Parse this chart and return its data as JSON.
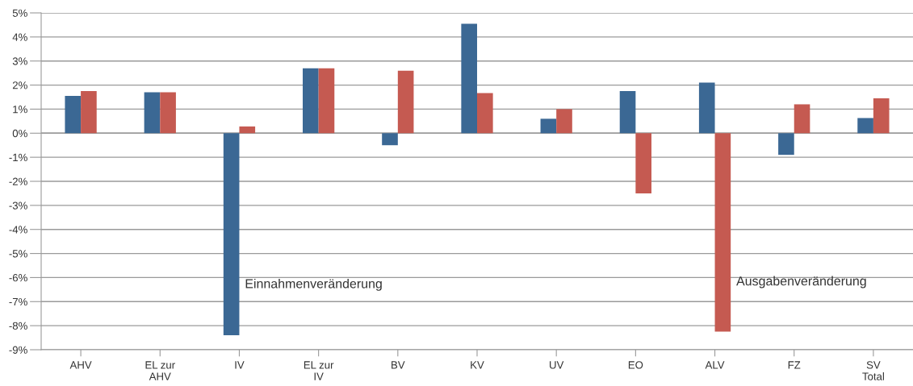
{
  "chart_data": {
    "type": "bar",
    "categories": [
      "AHV",
      "EL zur\nAHV",
      "IV",
      "EL zur\nIV",
      "BV",
      "KV",
      "UV",
      "EO",
      "ALV",
      "FZ",
      "SV\nTotal"
    ],
    "series": [
      {
        "name": "Einnahmenveränderung",
        "color": "#3b6894",
        "values": [
          1.55,
          1.7,
          -8.4,
          2.7,
          -0.5,
          4.55,
          0.6,
          1.75,
          2.1,
          -0.9,
          0.63
        ]
      },
      {
        "name": "Ausgabenveränderung",
        "color": "#c55a51",
        "values": [
          1.75,
          1.7,
          0.28,
          2.7,
          2.6,
          1.67,
          1.0,
          -2.5,
          -8.25,
          1.2,
          1.45
        ]
      }
    ],
    "ylim": [
      -9,
      5
    ],
    "yticks": [
      {
        "value": -9,
        "label": "-9%"
      },
      {
        "value": -8,
        "label": "-8%"
      },
      {
        "value": -7,
        "label": "-7%"
      },
      {
        "value": -6,
        "label": "-6%"
      },
      {
        "value": -5,
        "label": "-5%"
      },
      {
        "value": -4,
        "label": "-4%"
      },
      {
        "value": -3,
        "label": "-3%"
      },
      {
        "value": -2,
        "label": "-2%"
      },
      {
        "value": -1,
        "label": "-1%"
      },
      {
        "value": 0,
        "label": "0%"
      },
      {
        "value": 1,
        "label": "1%"
      },
      {
        "value": 2,
        "label": "2%"
      },
      {
        "value": 3,
        "label": "3%"
      },
      {
        "value": 4,
        "label": "4%"
      },
      {
        "value": 5,
        "label": "5%"
      }
    ],
    "grid": "y"
  }
}
